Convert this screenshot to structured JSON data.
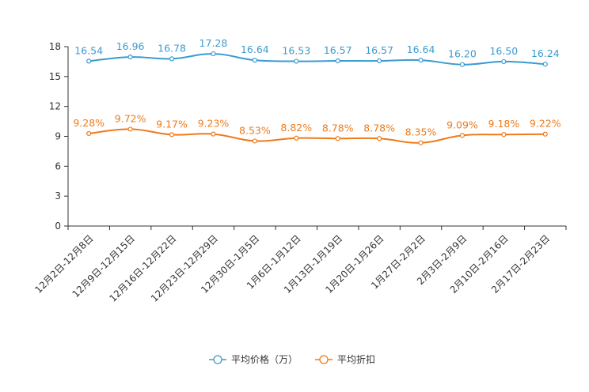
{
  "chart_data": {
    "type": "line",
    "title": "",
    "xlabel": "",
    "ylabel": "",
    "ylim": [
      0,
      18
    ],
    "yticks": [
      0,
      3,
      6,
      9,
      12,
      15,
      18
    ],
    "grid": false,
    "legend_position": "bottom-center",
    "categories": [
      "12月2日-12月8日",
      "12月9日-12月15日",
      "12月16日-12月22日",
      "12月23日-12月29日",
      "12月30日-1月5日",
      "1月6日-1月12日",
      "1月13日-1月19日",
      "1月20日-1月26日",
      "1月27日-2月2日",
      "2月3日-2月9日",
      "2月10日-2月16日",
      "2月17日-2月23日"
    ],
    "series": [
      {
        "name": "平均价格（万）",
        "color": "#3a9bd0",
        "values": [
          16.54,
          16.96,
          16.78,
          17.28,
          16.64,
          16.53,
          16.57,
          16.57,
          16.64,
          16.2,
          16.5,
          16.24
        ],
        "labels": [
          "16.54",
          "16.96",
          "16.78",
          "17.28",
          "16.64",
          "16.53",
          "16.57",
          "16.57",
          "16.64",
          "16.20",
          "16.50",
          "16.24"
        ]
      },
      {
        "name": "平均折扣",
        "color": "#ef7a1a",
        "values": [
          9.28,
          9.72,
          9.17,
          9.23,
          8.53,
          8.82,
          8.78,
          8.78,
          8.35,
          9.09,
          9.18,
          9.22
        ],
        "labels": [
          "9.28%",
          "9.72%",
          "9.17%",
          "9.23%",
          "8.53%",
          "8.82%",
          "8.78%",
          "8.78%",
          "8.35%",
          "9.09%",
          "9.18%",
          "9.22%"
        ]
      }
    ]
  }
}
